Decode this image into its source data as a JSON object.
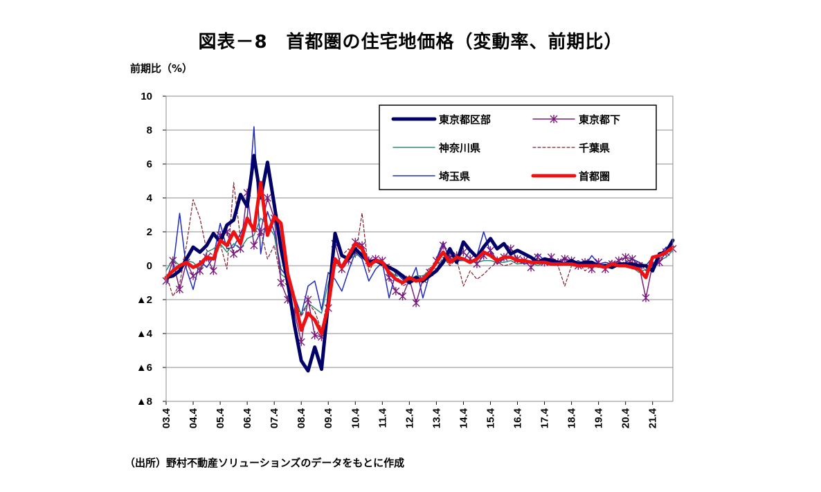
{
  "title": "図表－8　首都圏の住宅地価格（変動率、前期比）",
  "y_unit": "前期比（%）",
  "source": "（出所）野村不動産ソリューションズのデータをもとに作成",
  "chart_data": {
    "type": "line",
    "ylabel": "前期比（%）",
    "ylim": [
      -8,
      10
    ],
    "yticks": [
      10,
      8,
      6,
      4,
      2,
      0,
      -2,
      -4,
      -6,
      -8
    ],
    "ytick_labels": [
      "10",
      "8",
      "6",
      "4",
      "2",
      "0",
      "▲2",
      "▲4",
      "▲6",
      "▲8"
    ],
    "x_tick_labels": [
      "03.4",
      "04.4",
      "05.4",
      "06.4",
      "07.4",
      "08.4",
      "09.4",
      "10.4",
      "11.4",
      "12.4",
      "13.4",
      "14.4",
      "15.4",
      "16.4",
      "17.4",
      "18.4",
      "19.4",
      "20.4",
      "21.4"
    ],
    "grid": "horizontal",
    "legend_position": "top-right",
    "series": [
      {
        "name": "東京都区部",
        "color": "#000066",
        "width": 5,
        "dash": "",
        "marker": "none",
        "values": [
          -0.7,
          -0.6,
          -0.3,
          0.4,
          1.1,
          0.8,
          1.2,
          1.9,
          1.4,
          2.4,
          2.7,
          4.2,
          3.5,
          6.5,
          4.0,
          6.1,
          3.6,
          1.0,
          -1.0,
          -3.5,
          -5.6,
          -6.2,
          -4.8,
          -6.1,
          -2.2,
          1.9,
          0.6,
          0.4,
          1.0,
          0.6,
          0.2,
          0.3,
          0.1,
          -0.1,
          -0.3,
          -0.6,
          -1.0,
          -0.7,
          -0.9,
          -0.6,
          -0.3,
          0.2,
          1.0,
          0.2,
          1.4,
          0.9,
          0.5,
          1.1,
          1.6,
          1.0,
          1.3,
          0.7,
          0.9,
          0.7,
          0.5,
          0.2,
          0.4,
          0.3,
          0.2,
          0.1,
          0.3,
          0.1,
          0.2,
          0.2,
          0.0,
          0.0,
          -0.1,
          0.1,
          0.1,
          0.1,
          0.0,
          0.0,
          -0.3,
          0.7,
          0.8,
          1.5
        ]
      },
      {
        "name": "東京都下",
        "color": "#7a1a7a",
        "width": 1.5,
        "dash": "",
        "marker": "star",
        "values": [
          -0.9,
          0.3,
          -1.4,
          0.2,
          -0.6,
          -0.3,
          0.5,
          -0.3,
          1.8,
          2.0,
          0.7,
          1.0,
          4.3,
          1.2,
          2.0,
          4.0,
          2.8,
          -1.0,
          -2.0,
          -2.7,
          -4.5,
          -2.0,
          -4.1,
          -4.2,
          -2.5,
          1.3,
          -0.2,
          0.3,
          1.4,
          1.2,
          0.3,
          0.4,
          0.3,
          -0.7,
          -1.5,
          -1.8,
          -0.8,
          -2.2,
          -0.8,
          -0.4,
          0.3,
          1.2,
          0.5,
          0.6,
          0.8,
          0.4,
          0.1,
          0.6,
          0.9,
          0.3,
          0.5,
          1.0,
          0.4,
          0.3,
          -0.1,
          0.5,
          0.2,
          0.5,
          0.2,
          0.4,
          0.3,
          0.0,
          0.2,
          -0.2,
          0.2,
          -0.2,
          0.1,
          0.3,
          0.5,
          0.4,
          0.0,
          -1.9,
          0.1,
          0.2,
          0.8,
          1.0
        ]
      },
      {
        "name": "神奈川県",
        "color": "#2e8b78",
        "width": 1.5,
        "dash": "",
        "marker": "none",
        "values": [
          -0.3,
          0.4,
          0.0,
          0.3,
          0.2,
          -0.2,
          0.8,
          1.0,
          1.3,
          0.8,
          1.3,
          1.0,
          1.6,
          1.8,
          2.8,
          2.4,
          1.8,
          -0.5,
          -0.8,
          -2.2,
          -2.8,
          -2.2,
          -2.5,
          -2.8,
          -1.0,
          0.0,
          0.0,
          0.4,
          0.6,
          0.7,
          0.3,
          0.2,
          0.3,
          -0.3,
          -0.6,
          -0.5,
          -0.8,
          -0.6,
          -0.6,
          -0.3,
          0.1,
          0.3,
          0.4,
          0.4,
          0.3,
          0.3,
          0.2,
          0.3,
          0.3,
          0.2,
          0.2,
          0.3,
          0.1,
          0.2,
          0.2,
          0.0,
          0.2,
          0.2,
          0.1,
          0.1,
          0.0,
          0.0,
          0.1,
          0.0,
          -0.1,
          0.1,
          0.0,
          0.0,
          0.0,
          -0.1,
          -0.4,
          -0.2,
          0.0,
          0.3,
          0.5,
          0.9
        ]
      },
      {
        "name": "千葉県",
        "color": "#7a1f2b",
        "width": 1.2,
        "dash": "4,3",
        "marker": "none",
        "values": [
          -0.5,
          -1.8,
          -1.1,
          1.2,
          3.9,
          2.8,
          0.9,
          0.6,
          1.3,
          -0.2,
          4.9,
          1.6,
          2.9,
          2.0,
          2.1,
          0.4,
          1.2,
          -0.8,
          -1.2,
          -2.0,
          -3.0,
          -2.2,
          -2.7,
          -3.8,
          -1.8,
          0.0,
          0.6,
          1.0,
          0.5,
          3.1,
          -0.4,
          0.5,
          -0.1,
          0.1,
          -0.5,
          -1.2,
          -1.0,
          -0.9,
          -0.7,
          -0.1,
          -0.2,
          0.5,
          0.0,
          0.4,
          -1.2,
          -0.3,
          -0.8,
          -0.5,
          -0.1,
          0.2,
          0.0,
          0.1,
          0.3,
          0.2,
          0.3,
          0.1,
          0.2,
          0.1,
          0.0,
          -1.2,
          0.0,
          0.2,
          -0.3,
          0.0,
          -0.1,
          0.0,
          0.3,
          0.0,
          0.3,
          0.2,
          0.2,
          -0.3,
          0.2,
          0.4,
          0.7,
          1.2
        ]
      },
      {
        "name": "埼玉県",
        "color": "#1f2bbf",
        "width": 1.5,
        "dash": "",
        "marker": "none",
        "values": [
          -1.1,
          -0.2,
          3.1,
          -0.2,
          -1.4,
          0.3,
          -0.1,
          0.5,
          2.5,
          1.0,
          1.1,
          1.9,
          2.8,
          8.2,
          0.7,
          3.2,
          2.0,
          -0.2,
          -0.7,
          -1.8,
          -2.9,
          -1.2,
          -0.9,
          -2.6,
          -0.4,
          -0.8,
          -1.5,
          -0.3,
          0.8,
          0.4,
          -0.9,
          -0.2,
          0.2,
          -1.9,
          -0.4,
          -0.8,
          -1.0,
          -0.1,
          -1.9,
          -0.5,
          0.4,
          1.4,
          0.3,
          0.3,
          0.3,
          0.9,
          0.6,
          2.0,
          0.8,
          0.1,
          0.4,
          0.6,
          0.3,
          0.1,
          0.2,
          0.7,
          0.3,
          0.2,
          0.1,
          0.5,
          0.1,
          0.3,
          0.0,
          0.6,
          0.1,
          0.2,
          0.1,
          0.0,
          0.2,
          0.4,
          0.2,
          0.0,
          0.5,
          0.6,
          1.1,
          1.0
        ]
      },
      {
        "name": "首都圏",
        "color": "#ee1111",
        "width": 5,
        "dash": "",
        "marker": "none",
        "values": [
          -0.7,
          -0.3,
          0.0,
          0.2,
          -0.1,
          0.1,
          0.5,
          0.4,
          1.5,
          1.2,
          2.0,
          1.3,
          2.8,
          2.1,
          4.9,
          1.8,
          2.9,
          2.5,
          -0.5,
          -2.0,
          -3.8,
          -2.8,
          -3.2,
          -4.0,
          -2.4,
          0.4,
          -0.1,
          0.6,
          1.3,
          1.0,
          0.0,
          0.3,
          0.2,
          -0.4,
          -0.8,
          -1.0,
          -0.7,
          -0.9,
          -0.8,
          -0.4,
          0.2,
          0.8,
          0.2,
          0.5,
          0.4,
          0.2,
          0.4,
          0.8,
          0.6,
          0.3,
          0.5,
          0.5,
          0.3,
          0.3,
          0.2,
          0.2,
          0.2,
          0.1,
          0.1,
          0.1,
          0.1,
          0.0,
          0.0,
          0.0,
          0.0,
          -0.1,
          0.1,
          0.0,
          0.0,
          -0.1,
          -0.2,
          -0.7,
          0.5,
          0.6,
          0.8,
          1.1
        ]
      }
    ]
  }
}
